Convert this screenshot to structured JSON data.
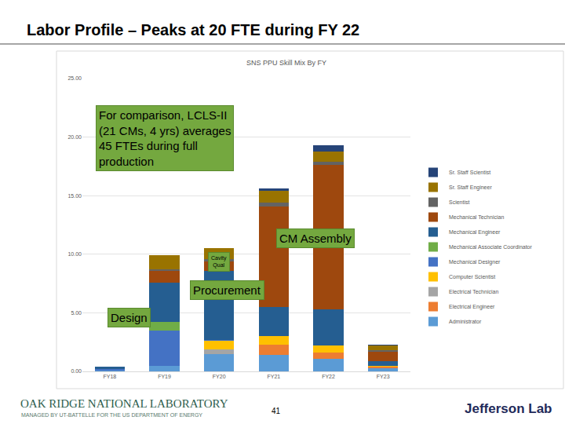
{
  "slide": {
    "title": "Labor Profile – Peaks at 20 FTE during FY 22",
    "page_number": "41",
    "footer": {
      "organization": "OAK RIDGE NATIONAL LABORATORY",
      "managed_by": "MANAGED BY UT-BATTELLE FOR THE US DEPARTMENT OF ENERGY",
      "partner": "Jefferson Lab"
    }
  },
  "chart_data": {
    "type": "bar",
    "stacked": true,
    "title": "SNS PPU Skill Mix By FY",
    "categories": [
      "FY18",
      "FY19",
      "FY20",
      "FY21",
      "FY22",
      "FY23"
    ],
    "series": [
      {
        "name": "Administrator",
        "color": "#5B9BD5",
        "values": [
          0.1,
          0.5,
          1.5,
          1.4,
          1.1,
          0.3
        ]
      },
      {
        "name": "Electrical Engineer",
        "color": "#ED7D31",
        "values": [
          0,
          0,
          0,
          0.9,
          0.5,
          0.1
        ]
      },
      {
        "name": "Electrical Technician",
        "color": "#A5A5A5",
        "values": [
          0,
          0,
          0.4,
          0,
          0,
          0
        ]
      },
      {
        "name": "Computer Scientist",
        "color": "#FFC000",
        "values": [
          0,
          0,
          0.7,
          0.7,
          0.6,
          0.1
        ]
      },
      {
        "name": "Mechanical Designer",
        "color": "#4472C4",
        "values": [
          0.1,
          3.0,
          0.1,
          0,
          0,
          0
        ]
      },
      {
        "name": "Mechanical Associate Coordinator",
        "color": "#70AD47",
        "values": [
          0,
          0.7,
          0,
          0,
          0,
          0
        ]
      },
      {
        "name": "Mechanical Engineer",
        "color": "#255E91",
        "values": [
          0.2,
          3.4,
          5.9,
          2.5,
          3.1,
          0.4
        ]
      },
      {
        "name": "Mechanical Technician",
        "color": "#9E480E",
        "values": [
          0,
          1.0,
          0.8,
          8.6,
          12.3,
          0.8
        ]
      },
      {
        "name": "Scientist",
        "color": "#636363",
        "values": [
          0,
          0.1,
          0.2,
          0.3,
          0.3,
          0.1
        ]
      },
      {
        "name": "Sr. Staff Engineer",
        "color": "#997300",
        "values": [
          0,
          1.2,
          0.9,
          1.0,
          0.9,
          0.4
        ]
      },
      {
        "name": "Sr. Staff Scientist",
        "color": "#264478",
        "values": [
          0,
          0,
          0,
          0.2,
          0.5,
          0.1
        ]
      }
    ],
    "ylim": [
      0,
      25
    ],
    "yticks": [
      {
        "value": 0,
        "label": "0.00"
      },
      {
        "value": 5,
        "label": "5.00"
      },
      {
        "value": 10,
        "label": "10.00"
      },
      {
        "value": 15,
        "label": "15.00"
      },
      {
        "value": 20,
        "label": "20.00"
      },
      {
        "value": 25,
        "label": "25.00"
      }
    ],
    "grid": true,
    "legend": "right",
    "annotations": [
      {
        "lines": [
          "For comparison, LCLS-II",
          "(21 CMs, 4 yrs) averages",
          "45 FTEs during full",
          "production"
        ]
      },
      {
        "lines": [
          "CM Assembly"
        ]
      },
      {
        "lines": [
          "Cavity",
          "Qual"
        ]
      },
      {
        "lines": [
          "Procurement"
        ]
      },
      {
        "lines": [
          "Design"
        ]
      }
    ]
  }
}
